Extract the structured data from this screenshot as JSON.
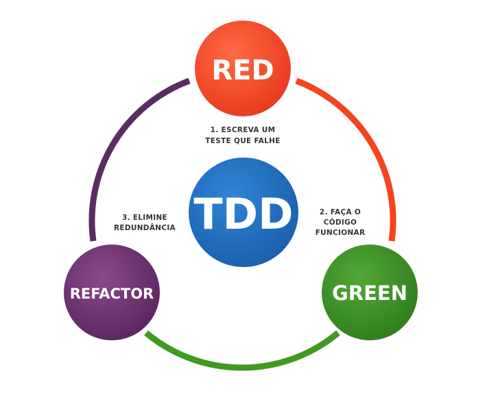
{
  "center": {
    "label": "TDD",
    "color": "#1f6dbd"
  },
  "phases": [
    {
      "id": "red",
      "label": "RED",
      "color": "#f04424"
    },
    {
      "id": "green",
      "label": "GREEN",
      "color": "#3d8f24"
    },
    {
      "id": "refactor",
      "label": "REFACTOR",
      "color": "#6a2f6c"
    }
  ],
  "steps": [
    {
      "lines": [
        "1. ESCREVA UM",
        "TESTE QUE FALHE"
      ]
    },
    {
      "lines": [
        "2. FAÇA O",
        "CÓDIGO",
        "FUNCIONAR"
      ]
    },
    {
      "lines": [
        "3. ELIMINE",
        "REDUNDÂNCIA"
      ]
    }
  ],
  "arcs": [
    {
      "from": "red",
      "to": "green",
      "color": "#f5451f"
    },
    {
      "from": "green",
      "to": "refactor",
      "color": "#3f9a22"
    },
    {
      "from": "refactor",
      "to": "red",
      "color": "#5b2c63"
    }
  ]
}
